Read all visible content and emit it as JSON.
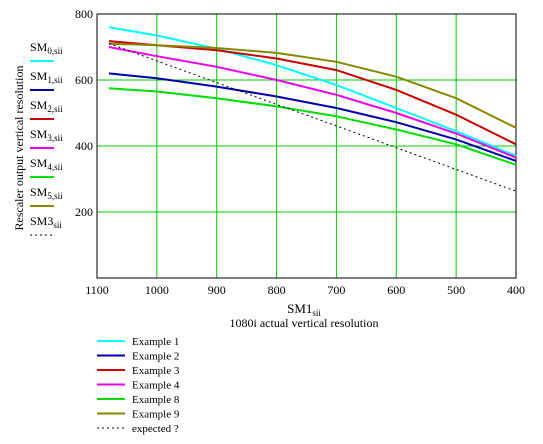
{
  "chart_data": {
    "type": "line",
    "xlabel": "SM1",
    "xlabel_sub": "sii",
    "xlabel_line2": "1080i actual vertical resolution",
    "ylabel": "Rescaler output vertical resolution",
    "xlim": [
      1100,
      400
    ],
    "ylim": [
      0,
      800
    ],
    "x_ticks": [
      "1100",
      "1000",
      "900",
      "800",
      "700",
      "600",
      "500",
      "400"
    ],
    "y_ticks": [
      "200",
      "400",
      "600",
      "800"
    ],
    "grid": true,
    "x": [
      1080,
      1000,
      900,
      800,
      700,
      600,
      500,
      400
    ],
    "series": [
      {
        "name": "Example 1",
        "color": "#00ffff",
        "dash": false,
        "values": [
          760,
          735,
          695,
          645,
          585,
          515,
          445,
          370
        ]
      },
      {
        "name": "Example 2",
        "color": "#0000aa",
        "dash": false,
        "values": [
          620,
          605,
          580,
          550,
          515,
          472,
          420,
          355
        ]
      },
      {
        "name": "Example 3",
        "color": "#cc0000",
        "dash": false,
        "values": [
          718,
          705,
          690,
          665,
          630,
          570,
          495,
          405
        ]
      },
      {
        "name": "Example 4",
        "color": "#ee00ee",
        "dash": false,
        "values": [
          700,
          672,
          640,
          600,
          555,
          500,
          438,
          365
        ]
      },
      {
        "name": "Example 8",
        "color": "#00dd00",
        "dash": false,
        "values": [
          575,
          565,
          545,
          520,
          490,
          450,
          405,
          343
        ]
      },
      {
        "name": "Example 9",
        "color": "#888800",
        "dash": false,
        "values": [
          710,
          705,
          697,
          682,
          655,
          610,
          545,
          455
        ]
      },
      {
        "name": "expected ?",
        "color": "#000000",
        "dash": true,
        "values": [
          711,
          658,
          592,
          526,
          461,
          395,
          329,
          263
        ]
      }
    ],
    "left_legend": [
      {
        "name": "SM",
        "sub": "0,sii",
        "color": "#00ffff",
        "dash": false
      },
      {
        "name": "SM",
        "sub": "1,sii",
        "color": "#0000aa",
        "dash": false
      },
      {
        "name": "SM",
        "sub": "2,sii",
        "color": "#cc0000",
        "dash": false
      },
      {
        "name": "SM",
        "sub": "3,sii",
        "color": "#ee00ee",
        "dash": false
      },
      {
        "name": "SM",
        "sub": "4,sii",
        "color": "#00dd00",
        "dash": false
      },
      {
        "name": "SM",
        "sub": "5,sii",
        "color": "#888800",
        "dash": false
      },
      {
        "name": "SM3",
        "sub": "sii",
        "color": "#000000",
        "dash": true
      }
    ],
    "bottom_legend": [
      "Example 1",
      "Example 2",
      "Example 3",
      "Example 4",
      "Example 8",
      "Example 9",
      "expected ?"
    ],
    "plot_border_color": "#000000",
    "grid_color": "#00cc00"
  }
}
